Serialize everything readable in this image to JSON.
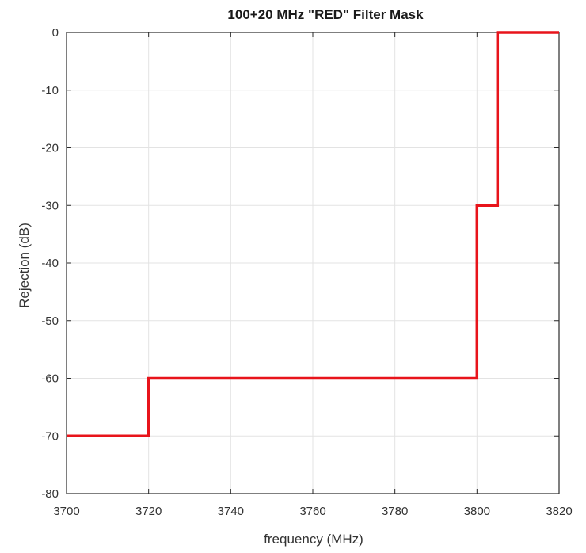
{
  "chart_data": {
    "type": "line",
    "title": "100+20 MHz \"RED\" Filter Mask",
    "xlabel": "frequency (MHz)",
    "ylabel": "Rejection (dB)",
    "xlim": [
      3700,
      3820
    ],
    "ylim": [
      -80,
      0
    ],
    "xticks": [
      3700,
      3720,
      3740,
      3760,
      3780,
      3800,
      3820
    ],
    "yticks": [
      0,
      -10,
      -20,
      -30,
      -40,
      -50,
      -60,
      -70,
      -80
    ],
    "grid": true,
    "series": [
      {
        "color": "#e8141b",
        "x": [
          3700,
          3720,
          3720,
          3800,
          3800,
          3805,
          3805,
          3820
        ],
        "y": [
          -70,
          -70,
          -60,
          -60,
          -30,
          -30,
          0,
          0
        ]
      }
    ]
  }
}
